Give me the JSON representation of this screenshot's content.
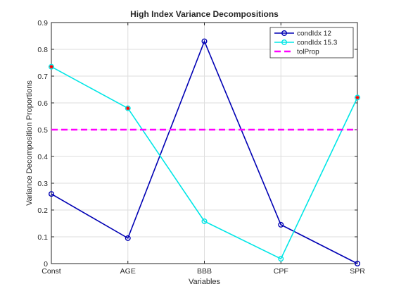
{
  "chart_data": {
    "type": "line",
    "title": "High Index Variance Decompositions",
    "xlabel": "Variables",
    "ylabel": "Variance Decomposition Proportions",
    "categories": [
      "Const",
      "AGE",
      "BBB",
      "CPF",
      "SPR"
    ],
    "ylim": [
      0,
      0.9
    ],
    "yticks": [
      0,
      0.1,
      0.2,
      0.3,
      0.4,
      0.5,
      0.6,
      0.7,
      0.8,
      0.9
    ],
    "ytick_labels": [
      "0",
      "0.1",
      "0.2",
      "0.3",
      "0.4",
      "0.5",
      "0.6",
      "0.7",
      "0.8",
      "0.9"
    ],
    "grid": true,
    "legend_position": "top-right",
    "series": [
      {
        "name": "condIdx 12",
        "values": [
          0.26,
          0.095,
          0.83,
          0.145,
          0.0
        ],
        "color": "#0000b4",
        "marker": "circle",
        "style": "solid"
      },
      {
        "name": "condIdx 15.3",
        "values": [
          0.735,
          0.58,
          0.158,
          0.018,
          0.62
        ],
        "color": "#00e6e6",
        "marker": "circle",
        "style": "solid"
      },
      {
        "name": "tolProp",
        "values": [
          0.5,
          0.5,
          0.5,
          0.5,
          0.5
        ],
        "color": "#ff00ff",
        "marker": "none",
        "style": "dashed"
      }
    ],
    "highlight_points": [
      {
        "category": "Const",
        "value": 0.735
      },
      {
        "category": "AGE",
        "value": 0.58
      },
      {
        "category": "SPR",
        "value": 0.62
      }
    ],
    "highlight_color": "#ff0000"
  }
}
